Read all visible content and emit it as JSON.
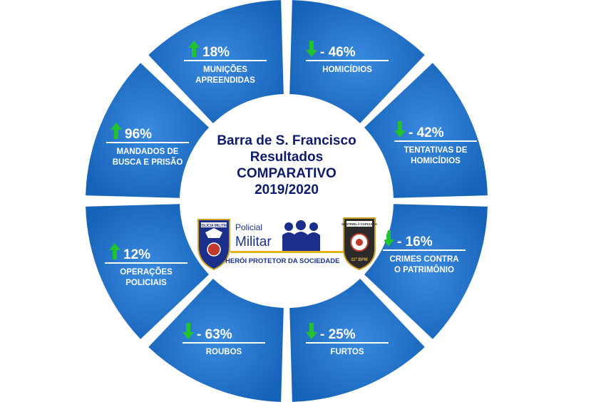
{
  "center": {
    "line1": "Barra de S. Francisco",
    "line2": "Resultados",
    "line3": "COMPARATIVO",
    "line4": "2019/2020"
  },
  "logo": {
    "pm_label_1": "Policial",
    "pm_label_2": "Militar",
    "slogan": "HERÓI PROTETOR  DA SOCIEDADE",
    "left_badge_text": "POLÍCIA MILITAR",
    "right_badge_text": "SENTINELA CAPIXABA",
    "right_badge_unit": "11º BPM"
  },
  "colors": {
    "segment": "#1f6fc5",
    "segment_dark": "#125aa7",
    "arrow": "#22c32e",
    "title": "#0d1b6e",
    "divider": "#ffffff"
  },
  "segments": [
    {
      "value": "18%",
      "label_lines": [
        "MUNIÇÕES",
        "APREENDIDAS"
      ],
      "direction": "up"
    },
    {
      "value": "- 46%",
      "label_lines": [
        "HOMICÍDIOS"
      ],
      "direction": "down"
    },
    {
      "value": "- 42%",
      "label_lines": [
        "TENTATIVAS DE",
        "HOMICÍDIOS"
      ],
      "direction": "down"
    },
    {
      "value": "- 16%",
      "label_lines": [
        "CRIMES CONTRA",
        "O PATRIMÔNIO"
      ],
      "direction": "down"
    },
    {
      "value": "- 25%",
      "label_lines": [
        "FURTOS"
      ],
      "direction": "down"
    },
    {
      "value": "- 63%",
      "label_lines": [
        "ROUBOS"
      ],
      "direction": "down"
    },
    {
      "value": "12%",
      "label_lines": [
        "OPERAÇÕES",
        "POLICIAIS"
      ],
      "direction": "up"
    },
    {
      "value": "96%",
      "label_lines": [
        "MANDADOS DE",
        "BUSCA E PRISÃO"
      ],
      "direction": "up"
    }
  ]
}
